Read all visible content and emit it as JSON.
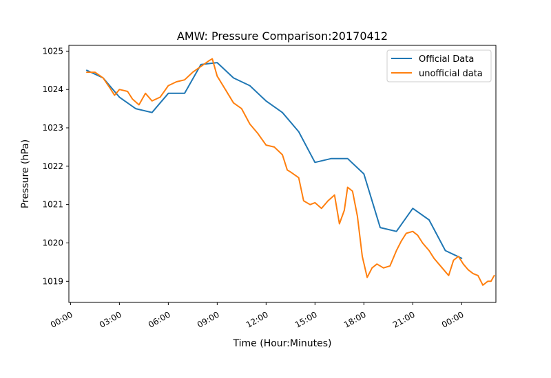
{
  "chart_data": {
    "type": "line",
    "title": "AMW: Pressure Comparison:20170412",
    "xlabel": "Time (Hour:Minutes)",
    "ylabel": "Pressure (hPa)",
    "xlim_hours": [
      -0.1,
      26.1
    ],
    "ylim": [
      1018.45,
      1025.15
    ],
    "grid": false,
    "legend_position": "top-right",
    "x_ticks": [
      {
        "hour": 0,
        "label": "00:00"
      },
      {
        "hour": 3,
        "label": "03:00"
      },
      {
        "hour": 6,
        "label": "06:00"
      },
      {
        "hour": 9,
        "label": "09:00"
      },
      {
        "hour": 12,
        "label": "12:00"
      },
      {
        "hour": 15,
        "label": "15:00"
      },
      {
        "hour": 18,
        "label": "18:00"
      },
      {
        "hour": 21,
        "label": "21:00"
      },
      {
        "hour": 24,
        "label": "00:00"
      }
    ],
    "y_ticks": [
      1019,
      1020,
      1021,
      1022,
      1023,
      1024,
      1025
    ],
    "series": [
      {
        "name": "Official Data",
        "color": "#1f77b4",
        "x_hours": [
          1.0,
          2.0,
          3.0,
          4.0,
          5.0,
          6.0,
          7.0,
          8.0,
          9.0,
          10.0,
          11.0,
          12.0,
          13.0,
          14.0,
          15.0,
          16.0,
          17.0,
          18.0,
          19.0,
          20.0,
          21.0,
          22.0,
          23.0,
          24.0
        ],
        "values": [
          1024.5,
          1024.3,
          1023.8,
          1023.5,
          1023.4,
          1023.9,
          1023.9,
          1024.65,
          1024.7,
          1024.3,
          1024.1,
          1023.7,
          1023.4,
          1022.9,
          1022.1,
          1022.2,
          1022.2,
          1021.8,
          1020.4,
          1020.3,
          1020.9,
          1020.6,
          1019.8,
          1019.6
        ]
      },
      {
        "name": "unofficial data",
        "color": "#ff7f0e",
        "x_hours": [
          1.0,
          1.5,
          2.0,
          2.4,
          2.7,
          3.0,
          3.5,
          3.8,
          4.2,
          4.6,
          5.0,
          5.5,
          6.0,
          6.5,
          7.0,
          7.5,
          8.0,
          8.5,
          8.7,
          9.0,
          9.5,
          10.0,
          10.5,
          11.0,
          11.5,
          12.0,
          12.5,
          13.0,
          13.3,
          13.5,
          14.0,
          14.3,
          14.7,
          15.0,
          15.4,
          15.8,
          16.2,
          16.5,
          16.8,
          17.0,
          17.3,
          17.6,
          17.9,
          18.2,
          18.5,
          18.8,
          19.2,
          19.6,
          20.0,
          20.3,
          20.6,
          21.0,
          21.3,
          21.6,
          22.0,
          22.3,
          22.6,
          23.0,
          23.2,
          23.5,
          23.8,
          24.1,
          24.4,
          24.7,
          25.0,
          25.3,
          25.6,
          25.8,
          26.0
        ],
        "values": [
          1024.45,
          1024.45,
          1024.3,
          1024.05,
          1023.85,
          1024.0,
          1023.95,
          1023.75,
          1023.6,
          1023.9,
          1023.7,
          1023.8,
          1024.1,
          1024.2,
          1024.25,
          1024.45,
          1024.6,
          1024.75,
          1024.8,
          1024.35,
          1024.0,
          1023.65,
          1023.5,
          1023.1,
          1022.85,
          1022.55,
          1022.5,
          1022.3,
          1021.9,
          1021.85,
          1021.7,
          1021.1,
          1021.0,
          1021.05,
          1020.9,
          1021.1,
          1021.25,
          1020.5,
          1020.85,
          1021.45,
          1021.35,
          1020.7,
          1019.65,
          1019.1,
          1019.35,
          1019.45,
          1019.35,
          1019.4,
          1019.8,
          1020.05,
          1020.25,
          1020.3,
          1020.2,
          1020.0,
          1019.8,
          1019.6,
          1019.45,
          1019.25,
          1019.15,
          1019.55,
          1019.65,
          1019.45,
          1019.3,
          1019.2,
          1019.15,
          1018.9,
          1019.0,
          1019.0,
          1019.15
        ]
      }
    ]
  }
}
